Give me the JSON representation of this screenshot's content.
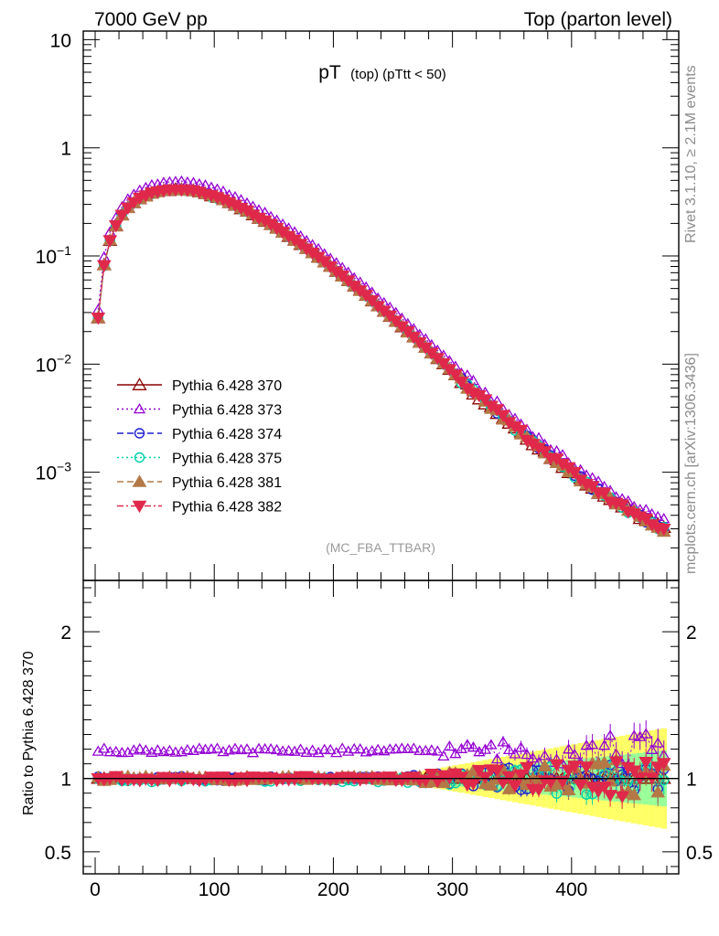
{
  "header": {
    "left": "7000 GeV pp",
    "right": "Top (parton level)",
    "side_top": "Rivet 3.1.10, ≥ 2.1M events",
    "side_bottom": "mcplots.cern.ch [arXiv:1306.3436]",
    "watermark": "(MC_FBA_TTBAR)"
  },
  "title": {
    "main": "pT",
    "sub": "(top) (pTtt < 50)"
  },
  "chart_data": [
    {
      "type": "line",
      "panel": "main",
      "yscale": "log",
      "ylim": [
        0.0001,
        12
      ],
      "xlim": [
        -10,
        490
      ],
      "grid": false,
      "legend_position": "left-lower",
      "yticks": [
        {
          "value": 10,
          "label": "10"
        },
        {
          "value": 1,
          "label": "1"
        },
        {
          "value": 0.1,
          "label": "10",
          "exp": "−1"
        },
        {
          "value": 0.01,
          "label": "10",
          "exp": "−2"
        },
        {
          "value": 0.001,
          "label": "10",
          "exp": "−3"
        }
      ],
      "x": [
        2.5,
        7.5,
        12.5,
        17.5,
        22.5,
        27.5,
        32.5,
        37.5,
        42.5,
        47.5,
        52.5,
        57.5,
        62.5,
        67.5,
        72.5,
        77.5,
        82.5,
        87.5,
        92.5,
        97.5,
        102.5,
        107.5,
        112.5,
        117.5,
        122.5,
        127.5,
        132.5,
        137.5,
        142.5,
        147.5,
        152.5,
        157.5,
        162.5,
        167.5,
        172.5,
        177.5,
        182.5,
        187.5,
        192.5,
        197.5,
        202.5,
        207.5,
        212.5,
        217.5,
        222.5,
        227.5,
        232.5,
        237.5,
        242.5,
        247.5,
        252.5,
        257.5,
        262.5,
        267.5,
        272.5,
        277.5,
        282.5,
        287.5,
        292.5,
        297.5,
        302.5,
        307.5,
        312.5,
        317.5,
        322.5,
        327.5,
        332.5,
        337.5,
        342.5,
        347.5,
        352.5,
        357.5,
        362.5,
        367.5,
        372.5,
        377.5,
        382.5,
        387.5,
        392.5,
        397.5,
        402.5,
        407.5,
        412.5,
        417.5,
        422.5,
        427.5,
        432.5,
        437.5,
        442.5,
        447.5,
        452.5,
        457.5,
        462.5,
        467.5,
        472.5,
        477.5
      ],
      "reference": [
        0.027,
        0.082,
        0.14,
        0.19,
        0.24,
        0.28,
        0.31,
        0.34,
        0.36,
        0.38,
        0.39,
        0.4,
        0.405,
        0.41,
        0.41,
        0.405,
        0.4,
        0.39,
        0.375,
        0.36,
        0.345,
        0.33,
        0.31,
        0.295,
        0.275,
        0.26,
        0.24,
        0.225,
        0.21,
        0.195,
        0.18,
        0.165,
        0.152,
        0.14,
        0.128,
        0.117,
        0.106,
        0.097,
        0.088,
        0.08,
        0.072,
        0.065,
        0.059,
        0.053,
        0.048,
        0.043,
        0.0385,
        0.0345,
        0.031,
        0.0278,
        0.0249,
        0.0223,
        0.0199,
        0.0178,
        0.0159,
        0.0142,
        0.0127,
        0.0113,
        0.0101,
        0.009,
        0.008,
        0.0071,
        0.0063,
        0.0056,
        0.005,
        0.0045,
        0.004,
        0.0036,
        0.0032,
        0.0029,
        0.0026,
        0.00235,
        0.0021,
        0.0019,
        0.0017,
        0.00155,
        0.0014,
        0.00127,
        0.00115,
        0.00105,
        0.00096,
        0.00088,
        0.0008,
        0.00073,
        0.00067,
        0.00061,
        0.00056,
        0.00052,
        0.00048,
        0.00045,
        0.00042,
        0.00039,
        0.00036,
        0.00034,
        0.00032,
        0.0003
      ],
      "series": [
        {
          "name": "Pythia 6.428 370",
          "color": "#8b0000",
          "marker": "triangle-open",
          "dash": "",
          "ratio_offset": 0.0
        },
        {
          "name": "Pythia 6.428 373",
          "color": "#9400d3",
          "marker": "triangle-open-small",
          "dash": "2 3",
          "ratio_offset": 0.19
        },
        {
          "name": "Pythia 6.428 374",
          "color": "#1e1ed2",
          "marker": "circle-open",
          "dash": "7 4",
          "ratio_offset": 0.0
        },
        {
          "name": "Pythia 6.428 375",
          "color": "#00d2aa",
          "marker": "circle-open",
          "dash": "2 3",
          "ratio_offset": -0.01
        },
        {
          "name": "Pythia 6.428 381",
          "color": "#b47846",
          "marker": "triangle-filled",
          "dash": "7 4",
          "ratio_offset": 0.0
        },
        {
          "name": "Pythia 6.428 382",
          "color": "#e0284b",
          "marker": "triangle-down-filled",
          "dash": "7 3 2 3",
          "ratio_offset": 0.0
        }
      ]
    },
    {
      "type": "line",
      "panel": "ratio",
      "ylabel": "Ratio to Pythia 6.428 370",
      "ylim": [
        0.35,
        2.35
      ],
      "yticks": [
        {
          "value": 2,
          "label": "2"
        },
        {
          "value": 1,
          "label": "1"
        },
        {
          "value": 0.5,
          "label": "0.5"
        }
      ],
      "xticks": [
        {
          "value": 0,
          "label": "0"
        },
        {
          "value": 100,
          "label": "100"
        },
        {
          "value": 200,
          "label": "200"
        },
        {
          "value": 300,
          "label": "300"
        },
        {
          "value": 400,
          "label": "400"
        }
      ],
      "band_colors": [
        "#ffff66",
        "#99ff99"
      ]
    }
  ]
}
